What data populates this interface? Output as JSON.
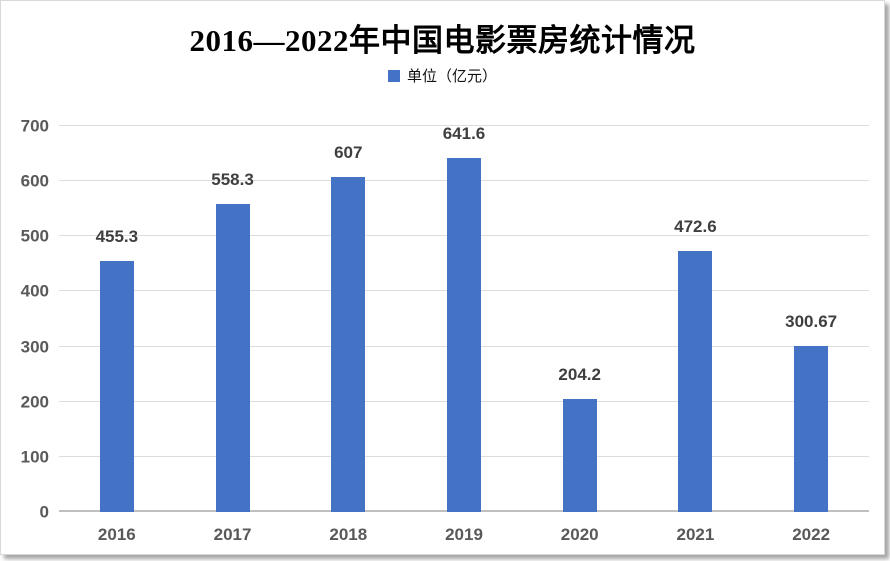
{
  "title": "2016—2022年中国电影票房统计情况",
  "legend": {
    "label": "单位（亿元）",
    "swatch_color": "#4472C4"
  },
  "chart_data": {
    "type": "bar",
    "title": "2016—2022年中国电影票房统计情况",
    "categories": [
      "2016",
      "2017",
      "2018",
      "2019",
      "2020",
      "2021",
      "2022"
    ],
    "values": [
      455.3,
      558.3,
      607,
      641.6,
      204.2,
      472.6,
      300.67
    ],
    "data_labels": [
      "455.3",
      "558.3",
      "607",
      "641.6",
      "204.2",
      "472.6",
      "300.67"
    ],
    "series_name": "单位（亿元）",
    "xlabel": "",
    "ylabel": "",
    "ylim": [
      0,
      700
    ],
    "yticks": [
      0,
      100,
      200,
      300,
      400,
      500,
      600,
      700
    ],
    "grid": true,
    "legend_position": "top",
    "bar_color": "#4472C4"
  },
  "colors": {
    "bar": "#4472C4",
    "gridline": "#DCDCDC",
    "axis_line": "#BFBFBF",
    "tick_label": "#595959",
    "data_label": "#3F3F3F",
    "title_text": "#000000",
    "frame_border": "#D9D9D9"
  }
}
